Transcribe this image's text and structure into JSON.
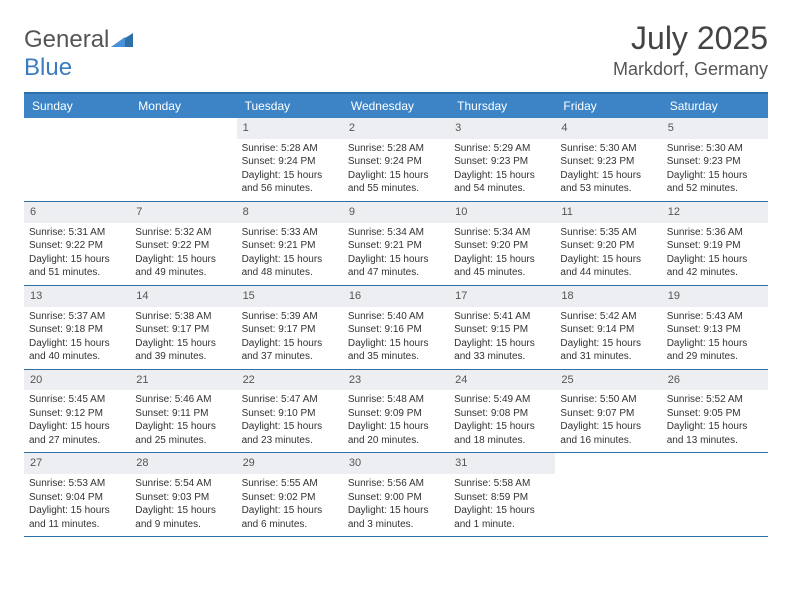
{
  "logo": {
    "text1": "General",
    "text2": "Blue"
  },
  "title": "July 2025",
  "location": "Markdorf, Germany",
  "colors": {
    "header_bg": "#3c84c6",
    "header_text": "#ffffff",
    "row_border": "#2f6fa8",
    "daynum_bg": "#eceef1",
    "body_text": "#333333"
  },
  "dayNames": [
    "Sunday",
    "Monday",
    "Tuesday",
    "Wednesday",
    "Thursday",
    "Friday",
    "Saturday"
  ],
  "weeks": [
    [
      {
        "empty": true
      },
      {
        "empty": true
      },
      {
        "num": "1",
        "sunrise": "5:28 AM",
        "sunset": "9:24 PM",
        "daylight": "15 hours and 56 minutes."
      },
      {
        "num": "2",
        "sunrise": "5:28 AM",
        "sunset": "9:24 PM",
        "daylight": "15 hours and 55 minutes."
      },
      {
        "num": "3",
        "sunrise": "5:29 AM",
        "sunset": "9:23 PM",
        "daylight": "15 hours and 54 minutes."
      },
      {
        "num": "4",
        "sunrise": "5:30 AM",
        "sunset": "9:23 PM",
        "daylight": "15 hours and 53 minutes."
      },
      {
        "num": "5",
        "sunrise": "5:30 AM",
        "sunset": "9:23 PM",
        "daylight": "15 hours and 52 minutes."
      }
    ],
    [
      {
        "num": "6",
        "sunrise": "5:31 AM",
        "sunset": "9:22 PM",
        "daylight": "15 hours and 51 minutes."
      },
      {
        "num": "7",
        "sunrise": "5:32 AM",
        "sunset": "9:22 PM",
        "daylight": "15 hours and 49 minutes."
      },
      {
        "num": "8",
        "sunrise": "5:33 AM",
        "sunset": "9:21 PM",
        "daylight": "15 hours and 48 minutes."
      },
      {
        "num": "9",
        "sunrise": "5:34 AM",
        "sunset": "9:21 PM",
        "daylight": "15 hours and 47 minutes."
      },
      {
        "num": "10",
        "sunrise": "5:34 AM",
        "sunset": "9:20 PM",
        "daylight": "15 hours and 45 minutes."
      },
      {
        "num": "11",
        "sunrise": "5:35 AM",
        "sunset": "9:20 PM",
        "daylight": "15 hours and 44 minutes."
      },
      {
        "num": "12",
        "sunrise": "5:36 AM",
        "sunset": "9:19 PM",
        "daylight": "15 hours and 42 minutes."
      }
    ],
    [
      {
        "num": "13",
        "sunrise": "5:37 AM",
        "sunset": "9:18 PM",
        "daylight": "15 hours and 40 minutes."
      },
      {
        "num": "14",
        "sunrise": "5:38 AM",
        "sunset": "9:17 PM",
        "daylight": "15 hours and 39 minutes."
      },
      {
        "num": "15",
        "sunrise": "5:39 AM",
        "sunset": "9:17 PM",
        "daylight": "15 hours and 37 minutes."
      },
      {
        "num": "16",
        "sunrise": "5:40 AM",
        "sunset": "9:16 PM",
        "daylight": "15 hours and 35 minutes."
      },
      {
        "num": "17",
        "sunrise": "5:41 AM",
        "sunset": "9:15 PM",
        "daylight": "15 hours and 33 minutes."
      },
      {
        "num": "18",
        "sunrise": "5:42 AM",
        "sunset": "9:14 PM",
        "daylight": "15 hours and 31 minutes."
      },
      {
        "num": "19",
        "sunrise": "5:43 AM",
        "sunset": "9:13 PM",
        "daylight": "15 hours and 29 minutes."
      }
    ],
    [
      {
        "num": "20",
        "sunrise": "5:45 AM",
        "sunset": "9:12 PM",
        "daylight": "15 hours and 27 minutes."
      },
      {
        "num": "21",
        "sunrise": "5:46 AM",
        "sunset": "9:11 PM",
        "daylight": "15 hours and 25 minutes."
      },
      {
        "num": "22",
        "sunrise": "5:47 AM",
        "sunset": "9:10 PM",
        "daylight": "15 hours and 23 minutes."
      },
      {
        "num": "23",
        "sunrise": "5:48 AM",
        "sunset": "9:09 PM",
        "daylight": "15 hours and 20 minutes."
      },
      {
        "num": "24",
        "sunrise": "5:49 AM",
        "sunset": "9:08 PM",
        "daylight": "15 hours and 18 minutes."
      },
      {
        "num": "25",
        "sunrise": "5:50 AM",
        "sunset": "9:07 PM",
        "daylight": "15 hours and 16 minutes."
      },
      {
        "num": "26",
        "sunrise": "5:52 AM",
        "sunset": "9:05 PM",
        "daylight": "15 hours and 13 minutes."
      }
    ],
    [
      {
        "num": "27",
        "sunrise": "5:53 AM",
        "sunset": "9:04 PM",
        "daylight": "15 hours and 11 minutes."
      },
      {
        "num": "28",
        "sunrise": "5:54 AM",
        "sunset": "9:03 PM",
        "daylight": "15 hours and 9 minutes."
      },
      {
        "num": "29",
        "sunrise": "5:55 AM",
        "sunset": "9:02 PM",
        "daylight": "15 hours and 6 minutes."
      },
      {
        "num": "30",
        "sunrise": "5:56 AM",
        "sunset": "9:00 PM",
        "daylight": "15 hours and 3 minutes."
      },
      {
        "num": "31",
        "sunrise": "5:58 AM",
        "sunset": "8:59 PM",
        "daylight": "15 hours and 1 minute."
      },
      {
        "empty": true
      },
      {
        "empty": true
      }
    ]
  ],
  "labels": {
    "sunrise": "Sunrise:",
    "sunset": "Sunset:",
    "daylight": "Daylight:"
  }
}
